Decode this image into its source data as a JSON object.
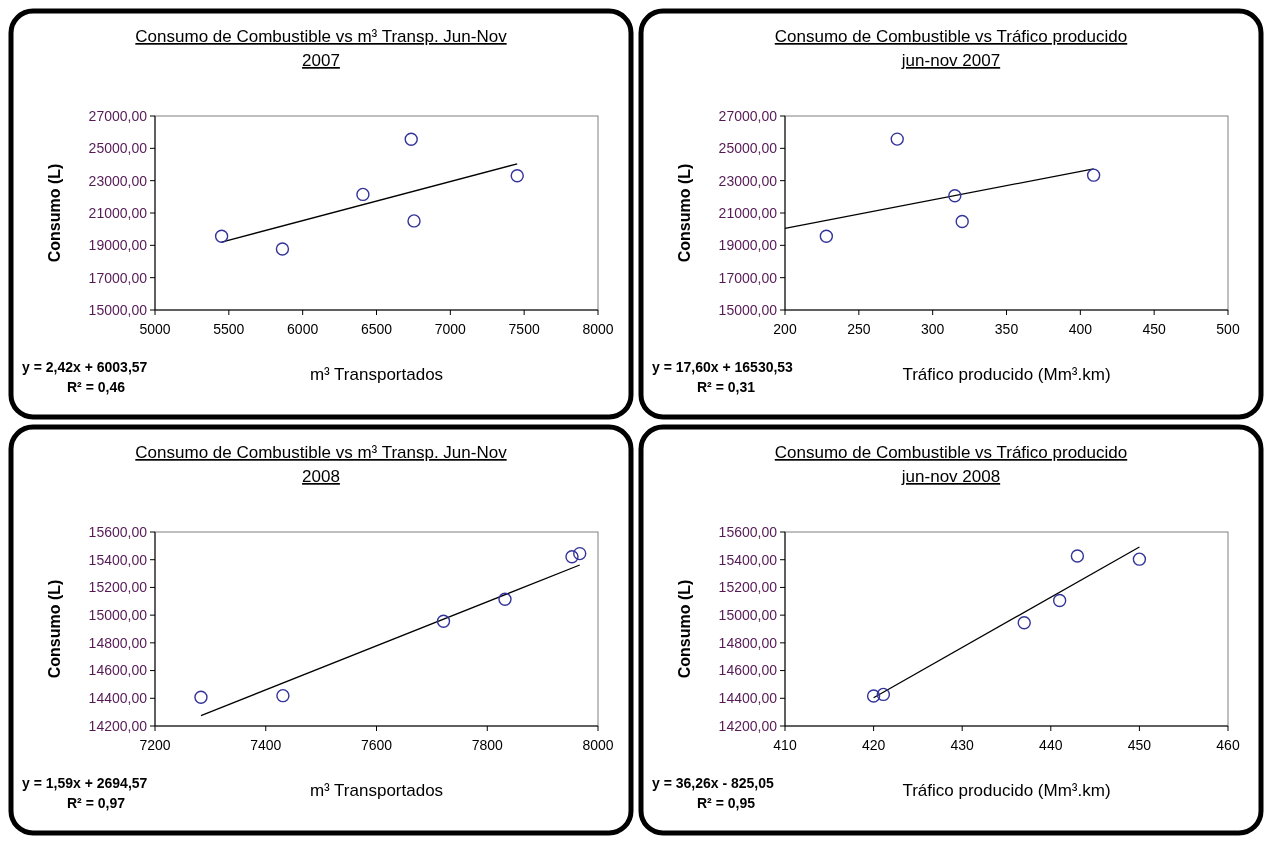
{
  "chart_data": [
    {
      "type": "scatter",
      "title": "Consumo de Combustible vs m³ Transp. Jun-Nov 2007",
      "xlabel": "m³ Transportados",
      "ylabel": "Consumo (L)",
      "xlim": [
        5000,
        8000
      ],
      "xticks": [
        5000,
        5500,
        6000,
        6500,
        7000,
        7500,
        8000
      ],
      "ylim": [
        15000,
        27000
      ],
      "yticks": [
        {
          "value": 15000,
          "label": "15000,00"
        },
        {
          "value": 17000,
          "label": "17000,00"
        },
        {
          "value": 19000,
          "label": "19000,00"
        },
        {
          "value": 21000,
          "label": "21000,00"
        },
        {
          "value": 23000,
          "label": "23000,00"
        },
        {
          "value": 25000,
          "label": "25000,00"
        },
        {
          "value": 27000,
          "label": "27000,00"
        }
      ],
      "grid": false,
      "annotations": [
        "y = 2,42x + 6003,57",
        "R² = 0,46"
      ],
      "series": [
        {
          "type": "scatter",
          "color": "#333399",
          "marker": "circle",
          "x": [
            5451,
            5863,
            6408,
            6735,
            6754,
            7453
          ],
          "values": [
            19560,
            18770,
            22150,
            25560,
            20510,
            23300
          ]
        },
        {
          "type": "line",
          "color": "#000000",
          "marker": "none",
          "line_style": "solid",
          "x": [
            5451,
            7453
          ],
          "values": [
            19200,
            24040
          ]
        }
      ]
    },
    {
      "type": "scatter",
      "title": "Consumo de Combustible vs Tráfico producido jun-nov 2007",
      "xlabel": "Tráfico producido (Mm³.km)",
      "ylabel": "Consumo (L)",
      "xlim": [
        200,
        500
      ],
      "xticks": [
        200,
        250,
        300,
        350,
        400,
        450,
        500
      ],
      "ylim": [
        15000,
        27000
      ],
      "yticks": [
        {
          "value": 15000,
          "label": "15000,00"
        },
        {
          "value": 17000,
          "label": "17000,00"
        },
        {
          "value": 19000,
          "label": "19000,00"
        },
        {
          "value": 21000,
          "label": "21000,00"
        },
        {
          "value": 23000,
          "label": "23000,00"
        },
        {
          "value": 25000,
          "label": "25000,00"
        },
        {
          "value": 27000,
          "label": "27000,00"
        }
      ],
      "grid": false,
      "annotations": [
        "y = 17,60x + 16530,53",
        "R² = 0,31"
      ],
      "series": [
        {
          "type": "scatter",
          "color": "#333399",
          "marker": "circle",
          "x": [
            228,
            276,
            315,
            320,
            409
          ],
          "values": [
            19560,
            25570,
            22070,
            20470,
            23340
          ]
        },
        {
          "type": "line",
          "color": "#000000",
          "marker": "none",
          "line_style": "solid",
          "x": [
            200,
            409
          ],
          "values": [
            20050,
            23730
          ]
        }
      ]
    },
    {
      "type": "scatter",
      "title": "Consumo de Combustible vs m³ Transp. Jun-Nov 2008",
      "xlabel": "m³ Transportados",
      "ylabel": "Consumo (L)",
      "xlim": [
        7200,
        8000
      ],
      "xticks": [
        7200,
        7400,
        7600,
        7800,
        8000
      ],
      "ylim": [
        14200,
        15600
      ],
      "yticks": [
        {
          "value": 14200,
          "label": "14200,00"
        },
        {
          "value": 14400,
          "label": "14400,00"
        },
        {
          "value": 14600,
          "label": "14600,00"
        },
        {
          "value": 14800,
          "label": "14800,00"
        },
        {
          "value": 15000,
          "label": "15000,00"
        },
        {
          "value": 15200,
          "label": "15200,00"
        },
        {
          "value": 15400,
          "label": "15400,00"
        },
        {
          "value": 15600,
          "label": "15600,00"
        }
      ],
      "grid": false,
      "annotations": [
        "y = 1,59x + 2694,57",
        "R² = 0,97"
      ],
      "series": [
        {
          "type": "scatter",
          "color": "#333399",
          "marker": "circle",
          "x": [
            7283,
            7431,
            7721,
            7832,
            7953,
            7967
          ],
          "values": [
            14408,
            14419,
            14956,
            15115,
            15421,
            15444
          ]
        },
        {
          "type": "line",
          "color": "#000000",
          "marker": "none",
          "line_style": "solid",
          "x": [
            7283,
            7967
          ],
          "values": [
            14275,
            15362
          ]
        }
      ]
    },
    {
      "type": "scatter",
      "title": "Consumo de Combustible vs Tráfico producido jun-nov 2008",
      "xlabel": "Tráfico producido (Mm³.km)",
      "ylabel": "Consumo (L)",
      "xlim": [
        410,
        460
      ],
      "xticks": [
        410,
        420,
        430,
        440,
        450,
        460
      ],
      "ylim": [
        14200,
        15600
      ],
      "yticks": [
        {
          "value": 14200,
          "label": "14200,00"
        },
        {
          "value": 14400,
          "label": "14400,00"
        },
        {
          "value": 14600,
          "label": "14600,00"
        },
        {
          "value": 14800,
          "label": "14800,00"
        },
        {
          "value": 15000,
          "label": "15000,00"
        },
        {
          "value": 15200,
          "label": "15200,00"
        },
        {
          "value": 15400,
          "label": "15400,00"
        },
        {
          "value": 15600,
          "label": "15600,00"
        }
      ],
      "grid": false,
      "annotations": [
        "y = 36,26x - 825,05",
        "R² = 0,95"
      ],
      "series": [
        {
          "type": "scatter",
          "color": "#333399",
          "marker": "circle",
          "x": [
            420,
            421.1,
            437,
            441,
            443,
            450
          ],
          "values": [
            14416,
            14428,
            14945,
            15106,
            15427,
            15404
          ]
        },
        {
          "type": "line",
          "color": "#000000",
          "marker": "none",
          "line_style": "solid",
          "x": [
            420,
            450
          ],
          "values": [
            14404,
            15492
          ]
        }
      ]
    }
  ]
}
